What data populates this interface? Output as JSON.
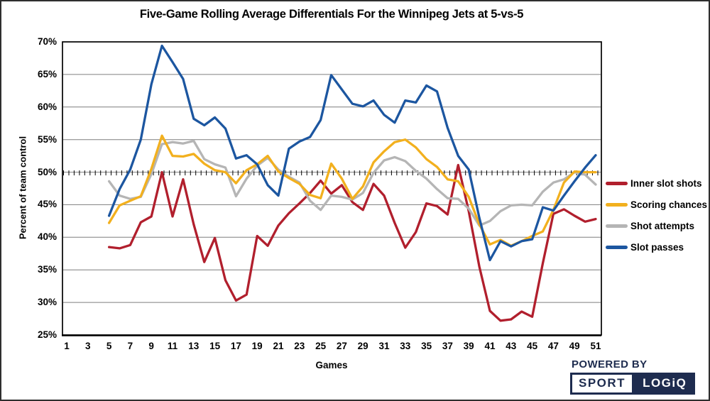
{
  "colors": {
    "grid": "#7f7f7f",
    "axis": "#000000",
    "navy": "#1e2c4f",
    "background": "#ffffff"
  },
  "logo": {
    "powered_by": "POWERED BY",
    "sport": "SPORT",
    "logiq": "LOGiQ"
  },
  "chart_data": {
    "type": "line",
    "title": "Five-Game Rolling Average Differentials For the Winnipeg Jets at 5-vs-5",
    "xlabel": "Games",
    "ylabel": "Percent of team control",
    "xlim": [
      1,
      51
    ],
    "ylim": [
      25,
      70
    ],
    "grid": "horizontal",
    "legend_position": "right",
    "x_tick_labels": [
      1,
      3,
      5,
      7,
      9,
      11,
      13,
      15,
      17,
      19,
      21,
      23,
      25,
      27,
      29,
      31,
      33,
      35,
      37,
      39,
      41,
      43,
      45,
      47,
      49,
      51
    ],
    "y_tick_labels": [
      "70%",
      "65%",
      "60%",
      "55%",
      "50%",
      "45%",
      "40%",
      "35%",
      "30%",
      "25%"
    ],
    "y_tick_values": [
      70,
      65,
      60,
      55,
      50,
      45,
      40,
      35,
      30,
      25
    ],
    "x_start_game": 5,
    "series": [
      {
        "name": "Inner slot shots",
        "color": "#b11f2d",
        "values": [
          38.5,
          38.3,
          38.8,
          42.3,
          43.2,
          50.0,
          43.2,
          48.9,
          42.0,
          36.2,
          39.9,
          33.4,
          30.3,
          31.2,
          40.2,
          38.7,
          41.8,
          43.7,
          45.2,
          46.8,
          48.7,
          46.7,
          48.0,
          45.4,
          44.2,
          48.2,
          46.4,
          42.2,
          38.4,
          40.8,
          45.2,
          44.8,
          43.5,
          51.1,
          44.0,
          35.5,
          28.7,
          27.2,
          27.4,
          28.6,
          27.8,
          36.0,
          43.6,
          44.3,
          43.3,
          42.4,
          42.8
        ]
      },
      {
        "name": "Scoring chances",
        "color": "#f2b01e",
        "values": [
          42.2,
          44.9,
          45.6,
          46.3,
          50.5,
          55.6,
          52.5,
          52.4,
          52.8,
          51.3,
          50.3,
          50.0,
          48.3,
          50.3,
          51.2,
          52.5,
          50.1,
          49.1,
          48.2,
          46.5,
          46.0,
          51.3,
          49.0,
          45.9,
          47.8,
          51.5,
          53.2,
          54.6,
          55.0,
          53.8,
          52.0,
          50.8,
          48.9,
          48.6,
          46.2,
          42.0,
          38.9,
          39.6,
          38.7,
          39.4,
          40.2,
          40.9,
          44.2,
          48.4,
          50.1,
          50.0,
          50.0
        ]
      },
      {
        "name": "Shot attempts",
        "color": "#b5b5b5",
        "values": [
          48.6,
          46.4,
          45.9,
          46.2,
          49.7,
          54.3,
          54.6,
          54.4,
          54.8,
          52.0,
          51.2,
          50.7,
          46.3,
          49.0,
          51.0,
          52.2,
          50.4,
          49.3,
          48.4,
          45.6,
          44.2,
          46.4,
          46.2,
          45.8,
          46.8,
          49.9,
          51.8,
          52.3,
          51.7,
          50.2,
          49.0,
          47.4,
          46.0,
          45.9,
          44.4,
          41.8,
          42.5,
          44.0,
          44.9,
          45.0,
          44.9,
          47.0,
          48.4,
          48.9,
          50.0,
          49.6,
          48.1
        ]
      },
      {
        "name": "Slot passes",
        "color": "#1c56a0",
        "values": [
          43.3,
          47.4,
          50.4,
          55.0,
          63.5,
          69.4,
          66.9,
          64.3,
          58.2,
          57.2,
          58.4,
          56.7,
          52.1,
          52.6,
          51.2,
          48.0,
          46.4,
          53.6,
          54.7,
          55.4,
          58.0,
          64.9,
          62.7,
          60.5,
          60.1,
          61.0,
          58.8,
          57.6,
          61.0,
          60.7,
          63.3,
          62.4,
          56.8,
          52.5,
          50.4,
          43.0,
          36.5,
          39.4,
          38.6,
          39.4,
          39.7,
          44.6,
          44.1,
          46.4,
          48.6,
          50.7,
          52.6
        ]
      }
    ]
  }
}
